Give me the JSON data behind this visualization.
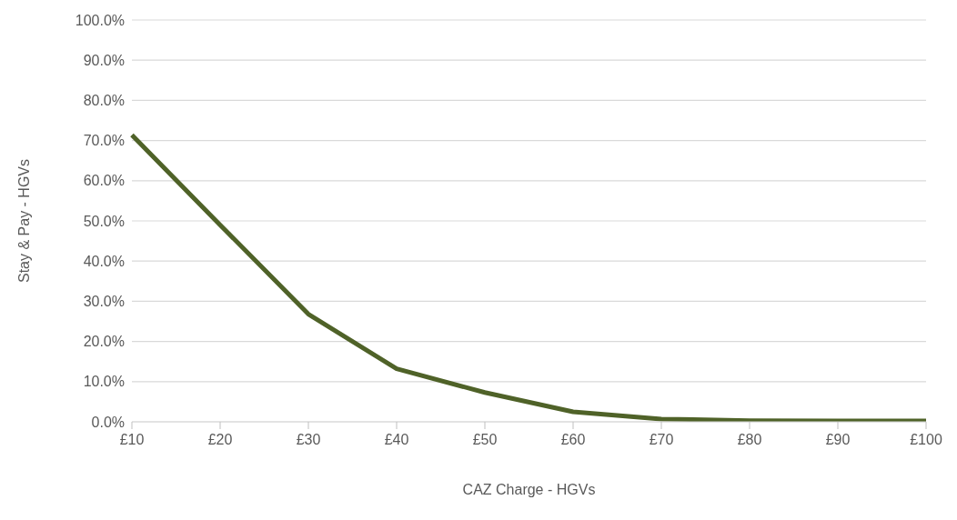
{
  "chart_data": {
    "type": "line",
    "xlabel": "CAZ Charge - HGVs",
    "ylabel": "Stay & Pay - HGVs",
    "categories": [
      "£10",
      "£20",
      "£30",
      "£40",
      "£50",
      "£60",
      "£70",
      "£80",
      "£90",
      "£100"
    ],
    "series": [
      {
        "color": "#4f6228",
        "values": [
          71.4,
          49,
          26.8,
          13.2,
          7.3,
          2.5,
          0.7,
          0.3,
          0.2,
          0.2
        ]
      }
    ],
    "ylim": [
      0,
      100
    ],
    "yticks": [
      {
        "value": 0,
        "label": "0.0%"
      },
      {
        "value": 10,
        "label": "10.0%"
      },
      {
        "value": 20,
        "label": "20.0%"
      },
      {
        "value": 30,
        "label": "30.0%"
      },
      {
        "value": 40,
        "label": "40.0%"
      },
      {
        "value": 50,
        "label": "50.0%"
      },
      {
        "value": 60,
        "label": "60.0%"
      },
      {
        "value": 70,
        "label": "70.0%"
      },
      {
        "value": 80,
        "label": "80.0%"
      },
      {
        "value": 90,
        "label": "90.0%"
      },
      {
        "value": 100,
        "label": "100.0%"
      }
    ],
    "grid": "y",
    "marker": "none",
    "line_style": "solid"
  }
}
